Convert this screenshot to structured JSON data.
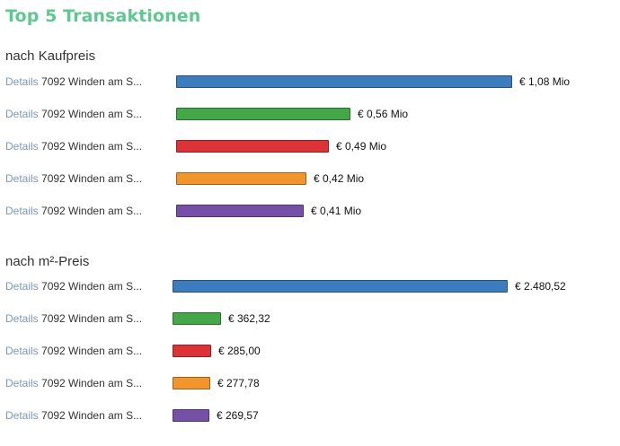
{
  "title": "Top 5 Transaktionen",
  "details_label": "Details",
  "colors": [
    "#3c7dbf",
    "#44a848",
    "#dd3336",
    "#f2952b",
    "#7650a6"
  ],
  "chart_data": [
    {
      "type": "bar",
      "title": "nach Kaufpreis",
      "categories": [
        "7092 Winden am S...",
        "7092 Winden am S...",
        "7092 Winden am S...",
        "7092 Winden am S...",
        "7092 Winden am S..."
      ],
      "values": [
        1.08,
        0.56,
        0.49,
        0.42,
        0.41
      ],
      "value_labels": [
        "€ 1,08 Mio",
        "€ 0,56 Mio",
        "€ 0,49 Mio",
        "€ 0,42 Mio",
        "€ 0,41 Mio"
      ],
      "unit": "Mio €"
    },
    {
      "type": "bar",
      "title": "nach m²-Preis",
      "categories": [
        "7092 Winden am S...",
        "7092 Winden am S...",
        "7092 Winden am S...",
        "7092 Winden am S...",
        "7092 Winden am S..."
      ],
      "values": [
        2480.52,
        362.32,
        285.0,
        277.78,
        269.57
      ],
      "value_labels": [
        "€ 2.480,52",
        "€ 362,32",
        "€ 285,00",
        "€ 277,78",
        "€ 269,57"
      ],
      "unit": "€/m²"
    }
  ]
}
